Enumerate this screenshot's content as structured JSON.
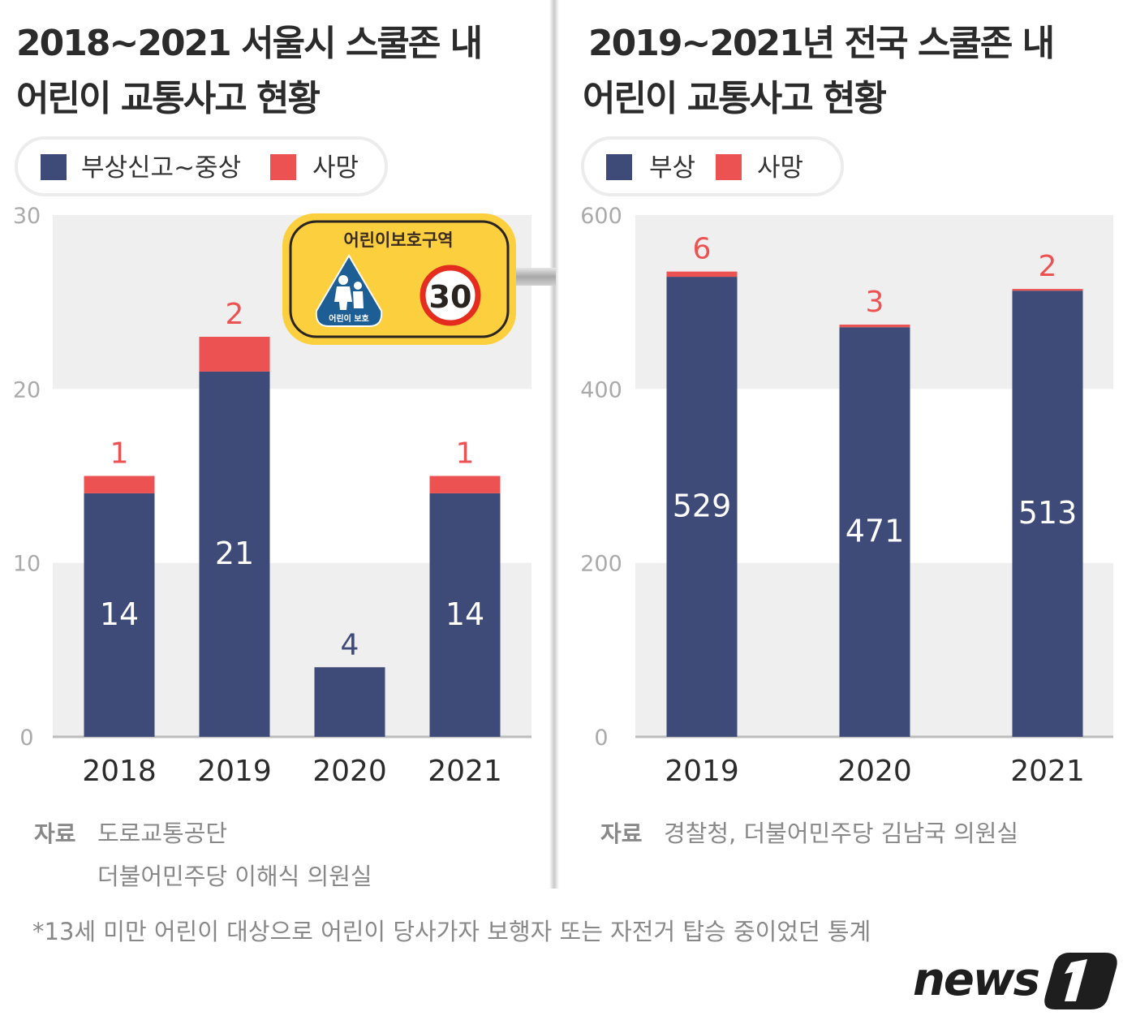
{
  "colors": {
    "injury": "#3e4a77",
    "death": "#ec5252",
    "band": "#efefef",
    "sign_yellow": "#fccf3e",
    "sign_blue": "#1d5f95"
  },
  "left": {
    "title_line1": "2018~2021 서울시 스쿨존 내",
    "title_line2": "어린이 교통사고 현황",
    "legend": [
      "부상신고~중상",
      "사망"
    ],
    "source_key": "자료",
    "source_lines": [
      "도로교통공단",
      "더불어민주당 이해식 의원실"
    ],
    "sign": {
      "title": "어린이보호구역",
      "triangle_label": "어린이 보호",
      "speed_limit": "30",
      "icon": "children-crossing-icon"
    }
  },
  "right": {
    "title_line1": "2019~2021년 전국 스쿨존 내",
    "title_line2": "어린이 교통사고 현황",
    "legend": [
      "부상",
      "사망"
    ],
    "source_key": "자료",
    "source_lines": [
      "경찰청, 더불어민주당 김남국 의원실"
    ]
  },
  "footnote": "*13세 미만 어린이 대상으로 어린이 당사가자 보행자 또는 자전거 탑승 중이었던 통계",
  "logo": "news1",
  "chart_data": [
    {
      "type": "bar",
      "stacked": true,
      "categories": [
        "2018",
        "2019",
        "2020",
        "2021"
      ],
      "series": [
        {
          "name": "부상신고~중상",
          "values": [
            14,
            21,
            4,
            14
          ]
        },
        {
          "name": "사망",
          "values": [
            1,
            2,
            0,
            1
          ]
        }
      ],
      "ylim": [
        0,
        30
      ],
      "yticks": [
        "0",
        "10",
        "20",
        "30"
      ],
      "grid": "alternating bands",
      "legend": "top-left"
    },
    {
      "type": "bar",
      "stacked": true,
      "categories": [
        "2019",
        "2020",
        "2021"
      ],
      "series": [
        {
          "name": "부상",
          "values": [
            529,
            471,
            513
          ]
        },
        {
          "name": "사망",
          "values": [
            6,
            3,
            2
          ]
        }
      ],
      "ylim": [
        0,
        600
      ],
      "yticks": [
        "0",
        "200",
        "400",
        "600"
      ],
      "grid": "alternating bands",
      "legend": "top-left"
    }
  ]
}
